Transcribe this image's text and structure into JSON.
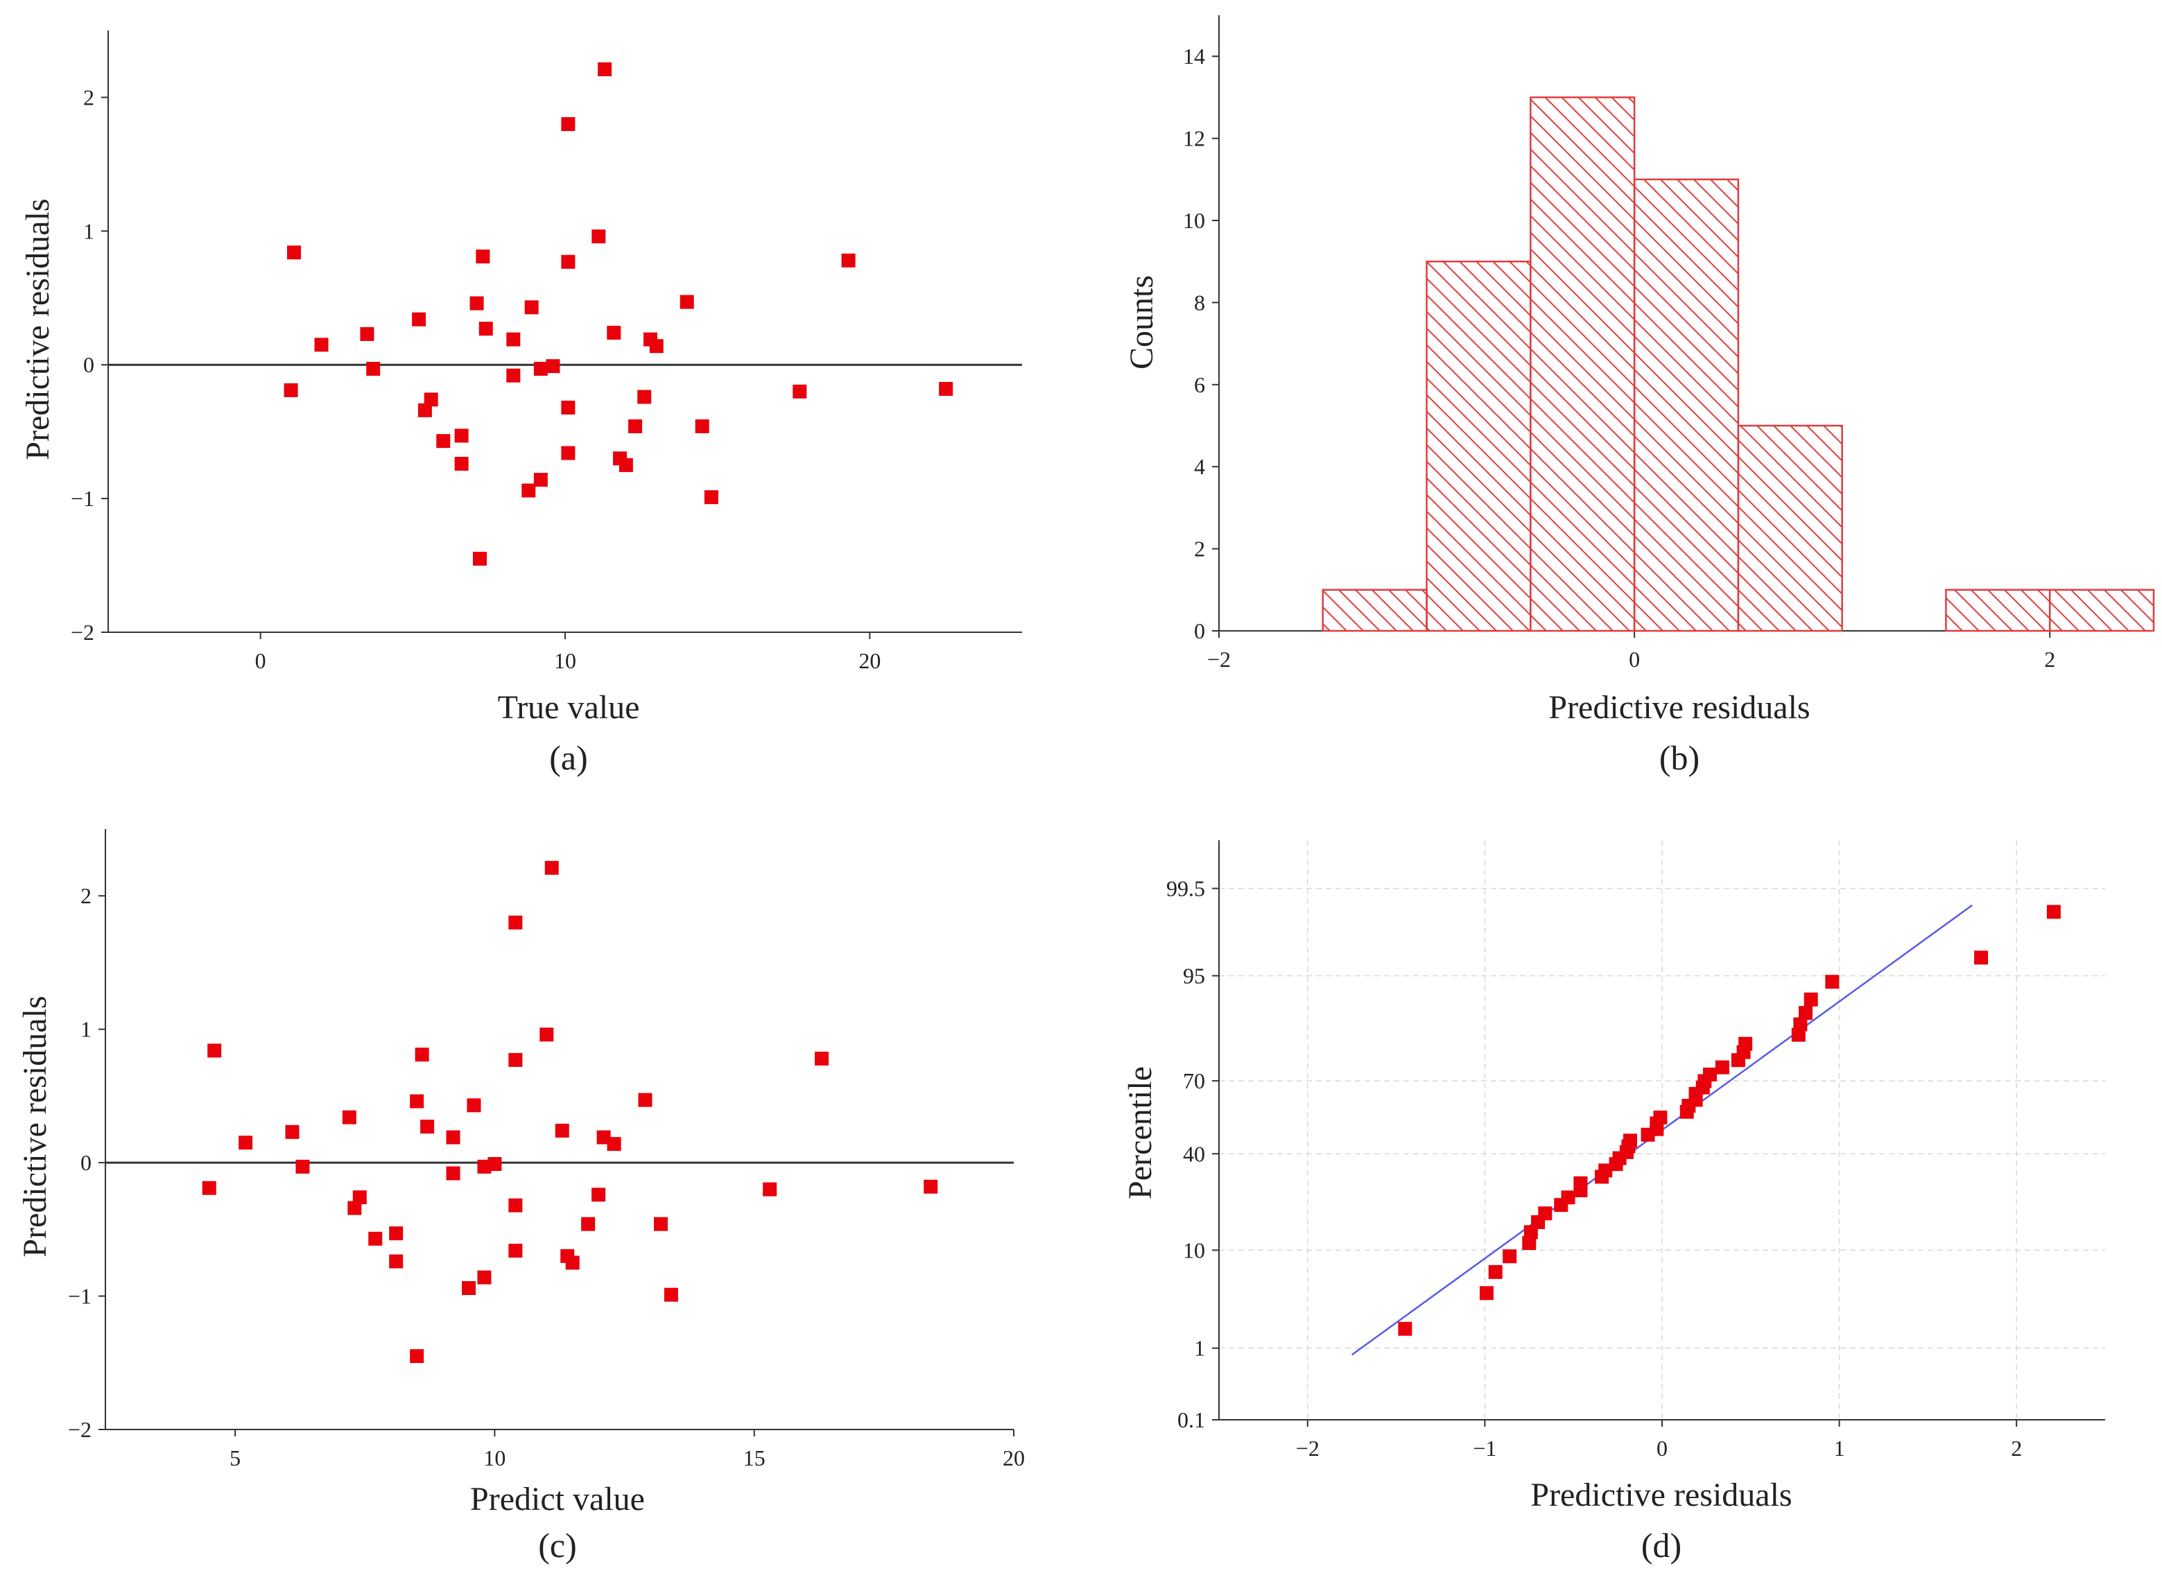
{
  "chart_data": [
    {
      "id": "a",
      "type": "scatter",
      "panel_label": "(a)",
      "xlabel": "True value",
      "ylabel": "Predictive residuals",
      "xlim": [
        -5,
        25
      ],
      "ylim": [
        -2,
        2.5
      ],
      "xticks": [
        0,
        10,
        20
      ],
      "yticks": [
        -2,
        -1,
        0,
        1,
        2
      ],
      "xtick_labels": [
        "0",
        "10",
        "20"
      ],
      "ytick_labels": [
        "−2",
        "−1",
        "0",
        "1",
        "2"
      ],
      "reference_line_y": 0,
      "marker_color": "#e8000b",
      "points": [
        [
          1.1,
          0.84
        ],
        [
          1.0,
          -0.19
        ],
        [
          2.0,
          0.15
        ],
        [
          3.5,
          0.23
        ],
        [
          3.7,
          -0.03
        ],
        [
          5.2,
          0.34
        ],
        [
          5.4,
          -0.34
        ],
        [
          5.6,
          -0.26
        ],
        [
          6.0,
          -0.57
        ],
        [
          6.6,
          -0.53
        ],
        [
          6.6,
          -0.74
        ],
        [
          7.1,
          0.46
        ],
        [
          7.3,
          0.81
        ],
        [
          7.4,
          0.27
        ],
        [
          7.2,
          -1.45
        ],
        [
          8.3,
          0.19
        ],
        [
          8.3,
          -0.08
        ],
        [
          8.9,
          0.43
        ],
        [
          8.8,
          -0.94
        ],
        [
          9.2,
          -0.03
        ],
        [
          9.2,
          -0.86
        ],
        [
          9.6,
          -0.01
        ],
        [
          10.1,
          1.8
        ],
        [
          10.1,
          0.77
        ],
        [
          10.1,
          -0.32
        ],
        [
          10.1,
          -0.66
        ],
        [
          11.1,
          0.96
        ],
        [
          11.3,
          2.21
        ],
        [
          11.6,
          0.24
        ],
        [
          11.8,
          -0.7
        ],
        [
          12.0,
          -0.75
        ],
        [
          12.3,
          -0.46
        ],
        [
          12.6,
          -0.24
        ],
        [
          12.8,
          0.19
        ],
        [
          13.0,
          0.14
        ],
        [
          14.0,
          0.47
        ],
        [
          14.5,
          -0.46
        ],
        [
          14.8,
          -0.99
        ],
        [
          17.7,
          -0.2
        ],
        [
          19.3,
          0.78
        ],
        [
          22.5,
          -0.18
        ]
      ]
    },
    {
      "id": "b",
      "type": "bar",
      "panel_label": "(b)",
      "xlabel": "Predictive residuals",
      "ylabel": "Counts",
      "xlim": [
        -2,
        2.5
      ],
      "ylim": [
        0,
        15
      ],
      "xticks": [
        -2,
        0,
        2
      ],
      "yticks": [
        0,
        2,
        4,
        6,
        8,
        10,
        12,
        14
      ],
      "xtick_labels": [
        "−2",
        "0",
        "2"
      ],
      "ytick_labels": [
        "0",
        "2",
        "4",
        "6",
        "8",
        "10",
        "12",
        "14"
      ],
      "bar_color": "#e03c3c",
      "bins": [
        {
          "x0": -1.5,
          "x1": -1.0,
          "count": 1
        },
        {
          "x0": -1.0,
          "x1": -0.5,
          "count": 9
        },
        {
          "x0": -0.5,
          "x1": 0.0,
          "count": 13
        },
        {
          "x0": 0.0,
          "x1": 0.5,
          "count": 11
        },
        {
          "x0": 0.5,
          "x1": 1.0,
          "count": 5
        },
        {
          "x0": 1.0,
          "x1": 1.5,
          "count": 0
        },
        {
          "x0": 1.5,
          "x1": 2.0,
          "count": 1
        },
        {
          "x0": 2.0,
          "x1": 2.5,
          "count": 1
        }
      ]
    },
    {
      "id": "c",
      "type": "scatter",
      "panel_label": "(c)",
      "xlabel": "Predict value",
      "ylabel": "Predictive residuals",
      "xlim": [
        2.5,
        20
      ],
      "ylim": [
        -2,
        2.5
      ],
      "xticks": [
        5,
        10,
        15,
        20
      ],
      "yticks": [
        -2,
        -1,
        0,
        1,
        2
      ],
      "xtick_labels": [
        "5",
        "10",
        "15",
        "20"
      ],
      "ytick_labels": [
        "−2",
        "−1",
        "0",
        "1",
        "2"
      ],
      "reference_line_y": 0,
      "marker_color": "#e8000b",
      "points": [
        [
          4.6,
          0.84
        ],
        [
          4.5,
          -0.19
        ],
        [
          5.2,
          0.15
        ],
        [
          6.1,
          0.23
        ],
        [
          6.3,
          -0.03
        ],
        [
          7.2,
          0.34
        ],
        [
          7.3,
          -0.34
        ],
        [
          7.4,
          -0.26
        ],
        [
          7.7,
          -0.57
        ],
        [
          8.1,
          -0.53
        ],
        [
          8.1,
          -0.74
        ],
        [
          8.5,
          0.46
        ],
        [
          8.6,
          0.81
        ],
        [
          8.7,
          0.27
        ],
        [
          8.5,
          -1.45
        ],
        [
          9.2,
          0.19
        ],
        [
          9.2,
          -0.08
        ],
        [
          9.6,
          0.43
        ],
        [
          9.5,
          -0.94
        ],
        [
          9.8,
          -0.03
        ],
        [
          9.8,
          -0.86
        ],
        [
          10.0,
          -0.01
        ],
        [
          10.4,
          1.8
        ],
        [
          10.4,
          0.77
        ],
        [
          10.4,
          -0.32
        ],
        [
          10.4,
          -0.66
        ],
        [
          11.0,
          0.96
        ],
        [
          11.1,
          2.21
        ],
        [
          11.3,
          0.24
        ],
        [
          11.4,
          -0.7
        ],
        [
          11.5,
          -0.75
        ],
        [
          11.8,
          -0.46
        ],
        [
          12.0,
          -0.24
        ],
        [
          12.1,
          0.19
        ],
        [
          12.3,
          0.14
        ],
        [
          12.9,
          0.47
        ],
        [
          13.2,
          -0.46
        ],
        [
          13.4,
          -0.99
        ],
        [
          15.3,
          -0.2
        ],
        [
          16.3,
          0.78
        ],
        [
          18.4,
          -0.18
        ]
      ]
    },
    {
      "id": "d",
      "type": "scatter",
      "panel_label": "(d)",
      "xlabel": "Predictive residuals",
      "ylabel": "Percentile",
      "xlim": [
        -2.5,
        2.5
      ],
      "ylim_percent": [
        0.1,
        99.9
      ],
      "xticks": [
        -2,
        -1,
        0,
        1,
        2
      ],
      "xtick_labels": [
        "−2",
        "−1",
        "0",
        "1",
        "2"
      ],
      "yticks_percent": [
        0.1,
        1,
        10,
        40,
        70,
        95,
        99.5
      ],
      "ytick_labels": [
        "0.1",
        "1",
        "10",
        "40",
        "70",
        "95",
        "99.5"
      ],
      "grid": true,
      "marker_color": "#e8000b",
      "line_color": "#5a5ae6",
      "fit_line": {
        "mean": 0.0,
        "sd": 0.73,
        "x_range": [
          -1.75,
          1.75
        ]
      },
      "points": [
        [
          -1.45,
          1.7
        ],
        [
          -0.99,
          4.1
        ],
        [
          -0.94,
          6.5
        ],
        [
          -0.86,
          8.9
        ],
        [
          -0.75,
          11.4
        ],
        [
          -0.74,
          13.8
        ],
        [
          -0.7,
          16.3
        ],
        [
          -0.66,
          18.7
        ],
        [
          -0.57,
          21.2
        ],
        [
          -0.53,
          23.6
        ],
        [
          -0.46,
          26.0
        ],
        [
          -0.46,
          28.5
        ],
        [
          -0.34,
          30.9
        ],
        [
          -0.32,
          33.3
        ],
        [
          -0.26,
          35.8
        ],
        [
          -0.24,
          38.2
        ],
        [
          -0.2,
          40.7
        ],
        [
          -0.19,
          43.1
        ],
        [
          -0.18,
          45.5
        ],
        [
          -0.08,
          48.0
        ],
        [
          -0.03,
          50.4
        ],
        [
          -0.03,
          52.8
        ],
        [
          -0.01,
          55.3
        ],
        [
          0.14,
          57.7
        ],
        [
          0.15,
          60.2
        ],
        [
          0.19,
          62.6
        ],
        [
          0.19,
          65.0
        ],
        [
          0.23,
          67.5
        ],
        [
          0.24,
          69.9
        ],
        [
          0.27,
          72.3
        ],
        [
          0.34,
          74.8
        ],
        [
          0.43,
          77.2
        ],
        [
          0.46,
          79.7
        ],
        [
          0.47,
          82.1
        ],
        [
          0.77,
          84.5
        ],
        [
          0.78,
          87.0
        ],
        [
          0.81,
          89.4
        ],
        [
          0.84,
          91.8
        ],
        [
          0.96,
          94.3
        ],
        [
          1.8,
          96.7
        ],
        [
          2.21,
          99.0
        ]
      ]
    }
  ]
}
